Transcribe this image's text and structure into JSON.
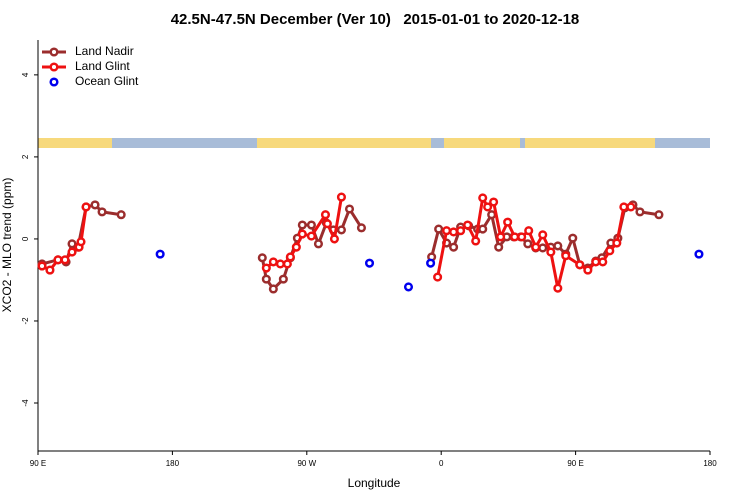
{
  "chart_data": {
    "type": "line",
    "title": "42.5N-47.5N December (Ver 10)   2015-01-01 to 2020-12-18",
    "x_label": "Longitude",
    "y_label": "XCO2 - MLO trend (ppm)",
    "xlim": [
      90,
      540
    ],
    "ylim": [
      -5.17,
      4.85
    ],
    "xticks": [
      {
        "value": 90,
        "label": "90 E"
      },
      180,
      {
        "value": 270,
        "label": "90 W"
      },
      {
        "value": 360,
        "label": "0"
      },
      {
        "value": 450,
        "label": "90 E"
      },
      {
        "value": 540,
        "label": "180"
      }
    ],
    "yticks": [
      -4,
      -2,
      0,
      2,
      4
    ],
    "legend": "top-left",
    "series": [
      {
        "name": "Land Nadir",
        "color": "#9b2d2d",
        "lines": true,
        "x": [
          92.7,
          103.4,
          108.8,
          112.8,
          116.8,
          122.2,
          128.2,
          132.9,
          145.7,
          null,
          240.2,
          242.9,
          247.6,
          254.3,
          259.0,
          263.7,
          267.0,
          273.1,
          277.8,
          283.1,
          287.8,
          293.2,
          298.6,
          306.6,
          null,
          353.6,
          358.3,
          363.6,
          368.3,
          373.0,
          378.4,
          384.4,
          387.8,
          393.8,
          398.5,
          403.9,
          408.6,
          413.3,
          418.0,
          423.3,
          428.0,
          433.4,
          438.1,
          443.4,
          448.1,
          452.8,
          458.2,
          463.5,
          467.6,
          473.6,
          478.3,
          483.0,
          488.4,
          493.1,
          505.8
        ],
        "values": [
          -0.61,
          -0.51,
          -0.56,
          -0.12,
          -0.2,
          0.78,
          0.83,
          0.66,
          0.59,
          null,
          -0.46,
          -0.98,
          -1.22,
          -0.98,
          -0.46,
          0.02,
          0.34,
          0.34,
          -0.12,
          0.39,
          0.22,
          0.22,
          0.73,
          0.27,
          null,
          -0.44,
          0.24,
          -0.1,
          -0.2,
          0.29,
          0.32,
          0.24,
          0.24,
          0.59,
          -0.2,
          0.05,
          0.05,
          0.05,
          -0.12,
          -0.22,
          -0.22,
          -0.2,
          -0.17,
          -0.37,
          0.02,
          -0.63,
          -0.71,
          -0.54,
          -0.46,
          -0.1,
          0.02,
          0.76,
          0.83,
          0.66,
          0.59
        ]
      },
      {
        "name": "Land Glint",
        "color": "#ee1111",
        "lines": true,
        "x": [
          92.7,
          98.0,
          103.4,
          108.1,
          112.8,
          117.5,
          118.8,
          122.2,
          null,
          242.9,
          247.6,
          252.3,
          257.0,
          259.0,
          263.0,
          267.0,
          273.1,
          282.5,
          283.8,
          288.5,
          293.2,
          null,
          357.6,
          363.6,
          368.3,
          373.0,
          377.7,
          383.1,
          387.8,
          391.1,
          395.1,
          399.8,
          404.5,
          409.2,
          413.9,
          418.6,
          423.3,
          428.0,
          433.4,
          438.1,
          443.4,
          452.8,
          458.2,
          463.5,
          468.2,
          472.9,
          477.6,
          482.3,
          487.0
        ],
        "values": [
          -0.66,
          -0.76,
          -0.51,
          -0.51,
          -0.32,
          -0.2,
          -0.07,
          0.78,
          null,
          -0.71,
          -0.56,
          -0.61,
          -0.61,
          -0.44,
          -0.2,
          0.12,
          0.07,
          0.59,
          0.37,
          0,
          1.02,
          null,
          -0.93,
          0.2,
          0.17,
          0.2,
          0.34,
          -0.05,
          1.0,
          0.78,
          0.9,
          0.05,
          0.41,
          0.05,
          0.05,
          0.2,
          -0.2,
          0.1,
          -0.32,
          -1.2,
          -0.41,
          -0.63,
          -0.76,
          -0.56,
          -0.56,
          -0.29,
          -0.1,
          0.78,
          0.78
        ]
      },
      {
        "name": "Ocean Glint",
        "color": "#0000ee",
        "lines": false,
        "x": [
          171.8,
          312.0,
          338.1,
          352.9,
          532.6
        ],
        "values": [
          -0.37,
          -0.59,
          -1.17,
          -0.59,
          -0.37
        ]
      }
    ]
  }
}
